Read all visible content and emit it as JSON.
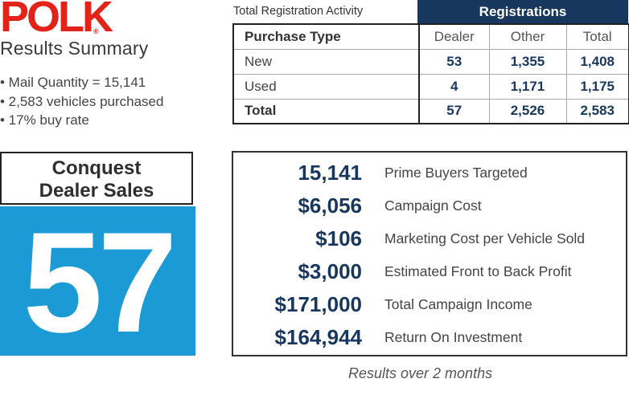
{
  "brand": {
    "logo_text": "POLK",
    "registered_mark": "®",
    "color": "#e2231a"
  },
  "summary": {
    "title": "Results Summary",
    "bullets": [
      "• Mail Quantity = 15,141",
      "• 2,583 vehicles purchased",
      "• 17% buy rate"
    ]
  },
  "conquest": {
    "label_line1": "Conquest",
    "label_line2": "Dealer Sales",
    "value": "57",
    "accent_color": "#1c9ad6"
  },
  "registration_table": {
    "title": "Total Registration Activity",
    "group_header": "Registrations",
    "header_color": "#17375e",
    "columns": [
      "Purchase Type",
      "Dealer",
      "Other",
      "Total"
    ],
    "rows": [
      {
        "type": "New",
        "dealer": "53",
        "other": "1,355",
        "total": "1,408"
      },
      {
        "type": "Used",
        "dealer": "4",
        "other": "1,171",
        "total": "1,175"
      },
      {
        "type": "Total",
        "dealer": "57",
        "other": "2,526",
        "total": "2,583"
      }
    ]
  },
  "metrics": [
    {
      "value": "15,141",
      "label": "Prime Buyers Targeted"
    },
    {
      "value": "$6,056",
      "label": "Campaign Cost"
    },
    {
      "value": "$106",
      "label": "Marketing Cost per Vehicle Sold"
    },
    {
      "value": "$3,000",
      "label": "Estimated Front to Back Profit"
    },
    {
      "value": "$171,000",
      "label": "Total Campaign Income"
    },
    {
      "value": "$164,944",
      "label": "Return On Investment"
    }
  ],
  "footnote": "Results over 2 months"
}
